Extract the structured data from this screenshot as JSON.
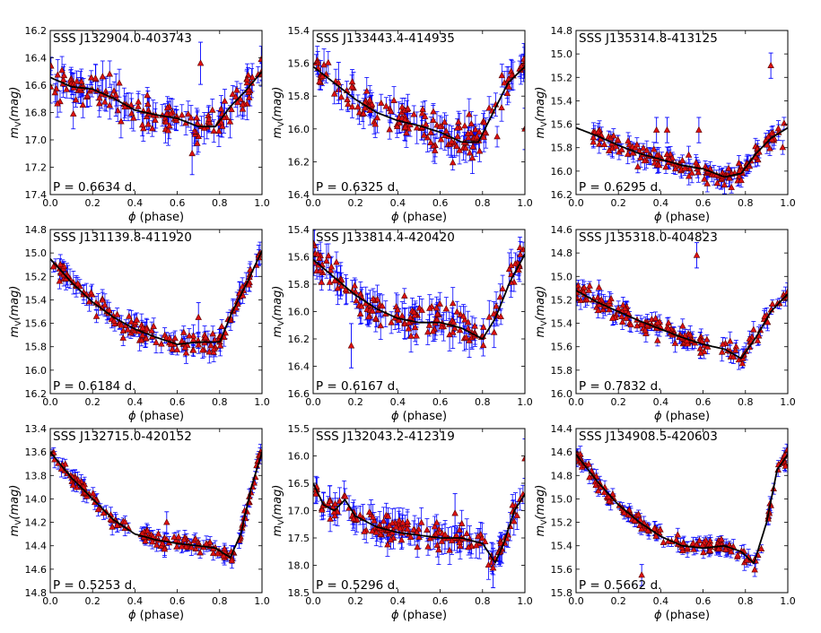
{
  "figure": {
    "xlabel_symbol": "ϕ",
    "xlabel_text": " (phase)",
    "ylabel_symbol": "m",
    "ylabel_sub": "V",
    "ylabel_unit": "(mag)"
  },
  "chart_data": [
    {
      "type": "scatter",
      "title": "SSS J132904.0-403743",
      "period_label": "P = 0.6634 d.",
      "xlabel": "ϕ (phase)",
      "ylabel": "mV(mag)",
      "xlim": [
        0.0,
        1.0
      ],
      "ylim": [
        16.2,
        17.6
      ],
      "y_inverted": true,
      "xticks": [
        "0.0",
        "0.2",
        "0.4",
        "0.6",
        "0.8",
        "1.0"
      ],
      "yticks": [
        "16.2",
        "16.4",
        "16.6",
        "16.8",
        "17.0",
        "17.2",
        "17.4"
      ],
      "model_curve": [
        [
          0.0,
          16.6
        ],
        [
          0.1,
          16.68
        ],
        [
          0.2,
          16.7
        ],
        [
          0.3,
          16.78
        ],
        [
          0.4,
          16.88
        ],
        [
          0.5,
          16.92
        ],
        [
          0.6,
          16.95
        ],
        [
          0.7,
          17.02
        ],
        [
          0.78,
          17.02
        ],
        [
          0.85,
          16.85
        ],
        [
          0.92,
          16.72
        ],
        [
          1.0,
          16.55
        ]
      ],
      "scatter_sigma": 0.07,
      "error_bar": 0.1,
      "outliers": [
        [
          0.71,
          16.48
        ],
        [
          0.31,
          16.75
        ],
        [
          0.67,
          17.25
        ]
      ]
    },
    {
      "type": "scatter",
      "title": "SSS J133443.4-414935",
      "period_label": "P = 0.6325 d.",
      "xlabel": "ϕ (phase)",
      "ylabel": "mV(mag)",
      "xlim": [
        0.0,
        1.0
      ],
      "ylim": [
        15.4,
        16.4
      ],
      "y_inverted": true,
      "xticks": [
        "0.0",
        "0.2",
        "0.4",
        "0.6",
        "0.8",
        "1.0"
      ],
      "yticks": [
        "15.4",
        "15.6",
        "15.8",
        "16.0",
        "16.2",
        "16.4"
      ],
      "model_curve": [
        [
          0.0,
          15.62
        ],
        [
          0.1,
          15.72
        ],
        [
          0.2,
          15.82
        ],
        [
          0.3,
          15.9
        ],
        [
          0.4,
          15.95
        ],
        [
          0.5,
          15.98
        ],
        [
          0.6,
          16.02
        ],
        [
          0.7,
          16.08
        ],
        [
          0.78,
          16.08
        ],
        [
          0.85,
          15.9
        ],
        [
          0.92,
          15.72
        ],
        [
          1.0,
          15.62
        ]
      ],
      "scatter_sigma": 0.06,
      "error_bar": 0.07,
      "outliers": [
        [
          1.0,
          16.0
        ],
        [
          0.12,
          15.72
        ]
      ]
    },
    {
      "type": "scatter",
      "title": "SSS J135314.8-413125",
      "period_label": "P = 0.6295 d.",
      "xlabel": "ϕ (phase)",
      "ylabel": "mV(mag)",
      "xlim": [
        0.0,
        1.0
      ],
      "ylim": [
        14.8,
        16.2
      ],
      "y_inverted": true,
      "xticks": [
        "0.0",
        "0.2",
        "0.4",
        "0.6",
        "0.8",
        "1.0"
      ],
      "yticks": [
        "14.8",
        "15.0",
        "15.2",
        "15.4",
        "15.6",
        "15.8",
        "16.0",
        "16.2"
      ],
      "model_curve": [
        [
          0.0,
          15.63
        ],
        [
          0.1,
          15.7
        ],
        [
          0.2,
          15.78
        ],
        [
          0.3,
          15.85
        ],
        [
          0.4,
          15.9
        ],
        [
          0.5,
          15.95
        ],
        [
          0.6,
          15.98
        ],
        [
          0.7,
          16.05
        ],
        [
          0.78,
          16.02
        ],
        [
          0.85,
          15.85
        ],
        [
          0.92,
          15.72
        ],
        [
          1.0,
          15.63
        ]
      ],
      "x_start": 0.08,
      "scatter_sigma": 0.04,
      "error_bar": 0.06,
      "outliers": [
        [
          0.92,
          15.1
        ],
        [
          0.38,
          15.65
        ],
        [
          0.43,
          15.65
        ],
        [
          0.58,
          15.65
        ]
      ]
    },
    {
      "type": "scatter",
      "title": "SSS J131139.8-411920",
      "period_label": "P = 0.6184 d.",
      "xlabel": "ϕ (phase)",
      "ylabel": "mV(mag)",
      "xlim": [
        0.0,
        1.0
      ],
      "ylim": [
        14.8,
        16.2
      ],
      "y_inverted": true,
      "xticks": [
        "0.0",
        "0.2",
        "0.4",
        "0.6",
        "0.8",
        "1.0"
      ],
      "yticks": [
        "14.8",
        "15.0",
        "15.2",
        "15.4",
        "15.6",
        "15.8",
        "16.0",
        "16.2"
      ],
      "model_curve": [
        [
          0.0,
          15.05
        ],
        [
          0.1,
          15.25
        ],
        [
          0.2,
          15.42
        ],
        [
          0.3,
          15.55
        ],
        [
          0.4,
          15.65
        ],
        [
          0.5,
          15.72
        ],
        [
          0.6,
          15.78
        ],
        [
          0.7,
          15.76
        ],
        [
          0.8,
          15.76
        ],
        [
          0.86,
          15.5
        ],
        [
          0.93,
          15.25
        ],
        [
          1.0,
          14.98
        ]
      ],
      "scatter_sigma": 0.04,
      "error_bar": 0.07,
      "outliers": [
        [
          0.7,
          15.55
        ]
      ]
    },
    {
      "type": "scatter",
      "title": "SSS J133814.4-420420",
      "period_label": "P = 0.6167 d.",
      "xlabel": "ϕ (phase)",
      "ylabel": "mV(mag)",
      "xlim": [
        0.0,
        1.0
      ],
      "ylim": [
        15.4,
        16.6
      ],
      "y_inverted": true,
      "xticks": [
        "0.0",
        "0.2",
        "0.4",
        "0.6",
        "0.8",
        "1.0"
      ],
      "yticks": [
        "15.4",
        "15.6",
        "15.8",
        "16.0",
        "16.2",
        "16.4",
        "16.6"
      ],
      "model_curve": [
        [
          0.0,
          15.62
        ],
        [
          0.1,
          15.75
        ],
        [
          0.2,
          15.88
        ],
        [
          0.3,
          15.98
        ],
        [
          0.4,
          16.05
        ],
        [
          0.5,
          16.08
        ],
        [
          0.6,
          16.08
        ],
        [
          0.7,
          16.12
        ],
        [
          0.8,
          16.2
        ],
        [
          0.86,
          16.05
        ],
        [
          0.93,
          15.78
        ],
        [
          1.0,
          15.58
        ]
      ],
      "scatter_sigma": 0.06,
      "error_bar": 0.09,
      "outliers": [
        [
          0.0,
          15.5
        ],
        [
          0.18,
          16.25
        ]
      ]
    },
    {
      "type": "scatter",
      "title": "SSS J135318.0-404823",
      "period_label": "P = 0.7832 d.",
      "xlabel": "ϕ (phase)",
      "ylabel": "mV(mag)",
      "xlim": [
        0.0,
        1.0
      ],
      "ylim": [
        14.6,
        16.0
      ],
      "y_inverted": true,
      "xticks": [
        "0.0",
        "0.2",
        "0.4",
        "0.6",
        "0.8",
        "1.0"
      ],
      "yticks": [
        "14.6",
        "14.8",
        "15.0",
        "15.2",
        "15.4",
        "15.6",
        "15.8",
        "16.0"
      ],
      "model_curve": [
        [
          0.0,
          15.12
        ],
        [
          0.1,
          15.22
        ],
        [
          0.2,
          15.3
        ],
        [
          0.3,
          15.38
        ],
        [
          0.4,
          15.45
        ],
        [
          0.5,
          15.52
        ],
        [
          0.6,
          15.58
        ],
        [
          0.7,
          15.62
        ],
        [
          0.78,
          15.7
        ],
        [
          0.85,
          15.52
        ],
        [
          0.92,
          15.3
        ],
        [
          1.0,
          15.15
        ]
      ],
      "scatter_sigma": 0.04,
      "error_bar": 0.06,
      "outliers": [
        [
          0.57,
          14.82
        ]
      ]
    },
    {
      "type": "scatter",
      "title": "SSS J132715.0-420152",
      "period_label": "P = 0.5253 d.",
      "xlabel": "ϕ (phase)",
      "ylabel": "mV(mag)",
      "xlim": [
        0.0,
        1.0
      ],
      "ylim": [
        13.4,
        14.8
      ],
      "y_inverted": true,
      "xticks": [
        "0.0",
        "0.2",
        "0.4",
        "0.6",
        "0.8",
        "1.0"
      ],
      "yticks": [
        "13.4",
        "13.6",
        "13.8",
        "14.0",
        "14.2",
        "14.4",
        "14.6",
        "14.8"
      ],
      "model_curve": [
        [
          0.0,
          13.6
        ],
        [
          0.1,
          13.82
        ],
        [
          0.2,
          14.0
        ],
        [
          0.3,
          14.18
        ],
        [
          0.4,
          14.3
        ],
        [
          0.5,
          14.35
        ],
        [
          0.6,
          14.38
        ],
        [
          0.7,
          14.4
        ],
        [
          0.78,
          14.42
        ],
        [
          0.85,
          14.5
        ],
        [
          0.9,
          14.3
        ],
        [
          0.95,
          13.9
        ],
        [
          1.0,
          13.6
        ]
      ],
      "scatter_sigma": 0.03,
      "error_bar": 0.05,
      "outliers": [
        [
          0.55,
          14.2
        ]
      ]
    },
    {
      "type": "scatter",
      "title": "SSS J132043.2-412319",
      "period_label": "P = 0.5296 d.",
      "xlabel": "ϕ (phase)",
      "ylabel": "mV(mag)",
      "xlim": [
        0.0,
        1.0
      ],
      "ylim": [
        15.5,
        18.5
      ],
      "y_inverted": true,
      "xticks": [
        "0.0",
        "0.2",
        "0.4",
        "0.6",
        "0.8",
        "1.0"
      ],
      "yticks": [
        "15.5",
        "16.0",
        "16.5",
        "17.0",
        "17.5",
        "18.0",
        "18.5"
      ],
      "model_curve": [
        [
          0.0,
          16.5
        ],
        [
          0.05,
          16.9
        ],
        [
          0.1,
          17.0
        ],
        [
          0.15,
          16.8
        ],
        [
          0.2,
          17.1
        ],
        [
          0.3,
          17.3
        ],
        [
          0.4,
          17.4
        ],
        [
          0.5,
          17.45
        ],
        [
          0.6,
          17.5
        ],
        [
          0.7,
          17.5
        ],
        [
          0.8,
          17.6
        ],
        [
          0.86,
          17.95
        ],
        [
          0.9,
          17.6
        ],
        [
          0.95,
          17.0
        ],
        [
          1.0,
          16.7
        ]
      ],
      "scatter_sigma": 0.12,
      "error_bar": 0.2,
      "outliers": [
        [
          1.0,
          16.05
        ],
        [
          0.67,
          17.05
        ],
        [
          0.85,
          18.05
        ]
      ]
    },
    {
      "type": "scatter",
      "title": "SSS J134908.5-420603",
      "period_label": "P = 0.5662 d.",
      "xlabel": "ϕ (phase)",
      "ylabel": "mV(mag)",
      "xlim": [
        0.0,
        1.0
      ],
      "ylim": [
        14.4,
        15.8
      ],
      "y_inverted": true,
      "xticks": [
        "0.0",
        "0.2",
        "0.4",
        "0.6",
        "0.8",
        "1.0"
      ],
      "yticks": [
        "14.4",
        "14.6",
        "14.8",
        "15.0",
        "15.2",
        "15.4",
        "15.6",
        "15.8"
      ],
      "model_curve": [
        [
          0.0,
          14.62
        ],
        [
          0.1,
          14.85
        ],
        [
          0.2,
          15.05
        ],
        [
          0.3,
          15.2
        ],
        [
          0.4,
          15.32
        ],
        [
          0.5,
          15.4
        ],
        [
          0.6,
          15.42
        ],
        [
          0.7,
          15.4
        ],
        [
          0.78,
          15.45
        ],
        [
          0.84,
          15.55
        ],
        [
          0.9,
          15.2
        ],
        [
          0.95,
          14.75
        ],
        [
          1.0,
          14.62
        ]
      ],
      "scatter_sigma": 0.03,
      "error_bar": 0.05,
      "outliers": [
        [
          0.31,
          15.65
        ]
      ]
    }
  ],
  "colors": {
    "point_fill": "#dd1111",
    "point_edge": "#550000",
    "error_bar": "#0000ff",
    "model_curve": "#000000",
    "axes": "#000000"
  }
}
